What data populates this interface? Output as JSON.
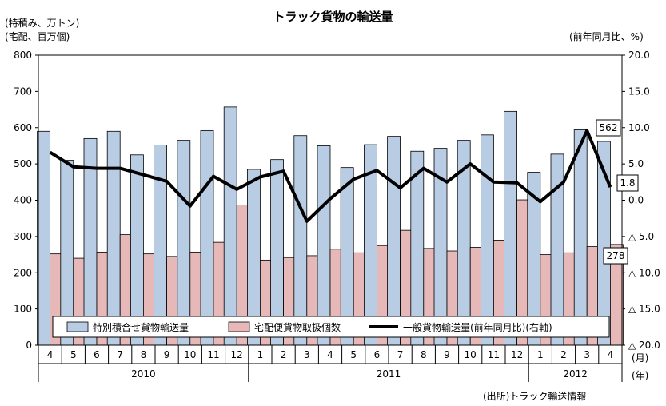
{
  "chart_data": {
    "type": "bar",
    "title": "トラック貨物の輸送量",
    "left_axis_unit_lines": [
      "(特積み、万トン)",
      "(宅配、百万個)"
    ],
    "right_axis_unit": "(前年同月比、%)",
    "source_note": "(出所)トラック輸送情報",
    "x_unit_month": "(月)",
    "x_unit_year": "(年)",
    "years": [
      {
        "label": "2010",
        "months": 9
      },
      {
        "label": "2011",
        "months": 12
      },
      {
        "label": "2012",
        "months": 4
      }
    ],
    "categories": [
      "4",
      "5",
      "6",
      "7",
      "8",
      "9",
      "10",
      "11",
      "12",
      "1",
      "2",
      "3",
      "4",
      "5",
      "6",
      "7",
      "8",
      "9",
      "10",
      "11",
      "12",
      "1",
      "2",
      "3",
      "4"
    ],
    "left_axis": {
      "min": 0,
      "max": 800,
      "ticks": [
        "0",
        "100",
        "200",
        "300",
        "400",
        "500",
        "600",
        "700",
        "800"
      ]
    },
    "right_axis": {
      "min": -20,
      "max": 20,
      "ticks": [
        "20.0",
        "15.0",
        "10.0",
        "5.0",
        "0.0",
        "△ 5.0",
        "△ 10.0",
        "△ 15.0",
        "△ 20.0"
      ]
    },
    "series": [
      {
        "name": "特別積合せ貨物輸送量",
        "axis": "left",
        "kind": "bar",
        "color": "#b8cce4",
        "values": [
          590,
          510,
          570,
          590,
          525,
          552,
          565,
          592,
          657,
          485,
          512,
          578,
          550,
          490,
          553,
          576,
          535,
          543,
          565,
          580,
          645,
          477,
          527,
          594,
          562
        ]
      },
      {
        "name": "宅配便貨物取扱個数",
        "axis": "left",
        "kind": "bar",
        "color": "#e6b9b8",
        "values": [
          252,
          240,
          257,
          305,
          252,
          245,
          257,
          284,
          387,
          235,
          242,
          247,
          265,
          255,
          275,
          317,
          267,
          260,
          270,
          290,
          401,
          250,
          255,
          272,
          278
        ]
      },
      {
        "name": "一般貨物輸送量(前年同月比)(右軸)",
        "axis": "right",
        "kind": "line",
        "color": "#000000",
        "values": [
          6.6,
          4.6,
          4.4,
          4.4,
          3.5,
          2.6,
          -0.8,
          3.3,
          1.5,
          3.2,
          4.0,
          -2.9,
          0.2,
          2.9,
          4.1,
          1.7,
          4.4,
          2.5,
          5.0,
          2.5,
          2.4,
          -0.2,
          2.5,
          9.6,
          1.8
        ]
      }
    ],
    "data_labels": [
      {
        "series": "特別積合せ貨物輸送量",
        "index": 24,
        "text": "562"
      },
      {
        "series": "宅配便貨物取扱個数",
        "index": 24,
        "text": "278"
      },
      {
        "series": "一般貨物輸送量(前年同月比)(右軸)",
        "index": 24,
        "text": "1.8"
      }
    ],
    "grid": false,
    "legend_position": "bottom-inside"
  }
}
